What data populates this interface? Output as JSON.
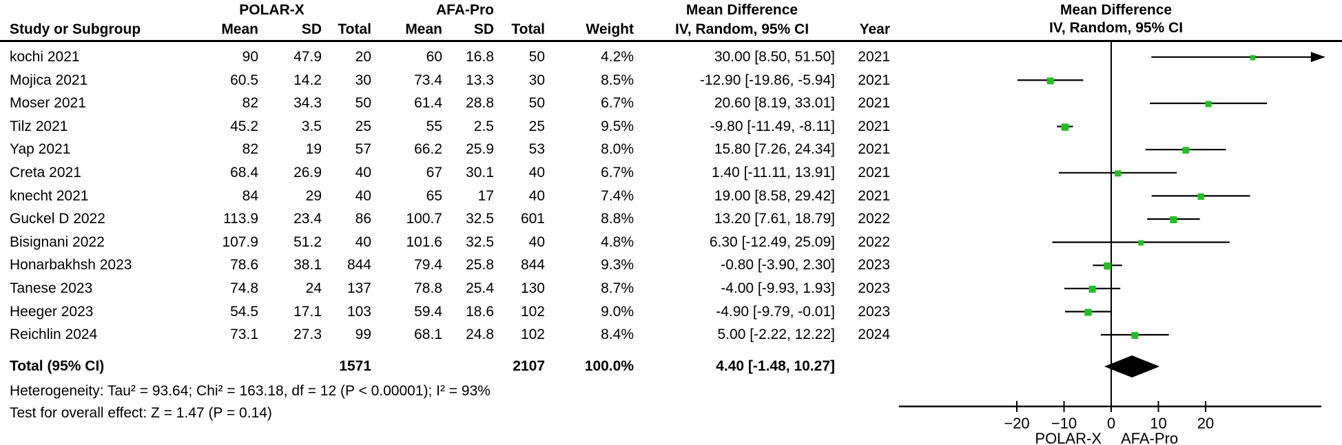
{
  "table": {
    "group1": "POLAR-X",
    "group2": "AFA-Pro",
    "effect_col": {
      "line1": "Mean Difference",
      "line2": "IV, Random, 95% CI"
    },
    "plot_col": {
      "line1": "Mean Difference",
      "line2": "IV, Random, 95% CI"
    },
    "columns": [
      "Study or Subgroup",
      "Mean",
      "SD",
      "Total",
      "Mean",
      "SD",
      "Total",
      "Weight",
      "IV, Random, 95% CI",
      "Year"
    ]
  },
  "chart_data": {
    "type": "forest",
    "effect_measure": "Mean Difference, IV, Random, 95% CI",
    "marker_color": "#20c020",
    "axis": {
      "ticks": [
        -20,
        -10,
        0,
        10,
        20
      ],
      "min": -45,
      "max": 44.5,
      "label_left": "POLAR-X",
      "label_right": "AFA-Pro"
    },
    "studies": [
      {
        "name": "kochi 2021",
        "mean1": "90",
        "sd1": "47.9",
        "n1": "20",
        "mean2": "60",
        "sd2": "16.8",
        "n2": "50",
        "weight": "4.2%",
        "md": 30.0,
        "lo": 8.5,
        "hi": 51.5,
        "ci_label": "30.00 [8.50, 51.50]",
        "year": "2021"
      },
      {
        "name": "Mojica 2021",
        "mean1": "60.5",
        "sd1": "14.2",
        "n1": "30",
        "mean2": "73.4",
        "sd2": "13.3",
        "n2": "30",
        "weight": "8.5%",
        "md": -12.9,
        "lo": -19.86,
        "hi": -5.94,
        "ci_label": "-12.90 [-19.86, -5.94]",
        "year": "2021"
      },
      {
        "name": "Moser 2021",
        "mean1": "82",
        "sd1": "34.3",
        "n1": "50",
        "mean2": "61.4",
        "sd2": "28.8",
        "n2": "50",
        "weight": "6.7%",
        "md": 20.6,
        "lo": 8.19,
        "hi": 33.01,
        "ci_label": "20.60 [8.19, 33.01]",
        "year": "2021"
      },
      {
        "name": "Tilz 2021",
        "mean1": "45.2",
        "sd1": "3.5",
        "n1": "25",
        "mean2": "55",
        "sd2": "2.5",
        "n2": "25",
        "weight": "9.5%",
        "md": -9.8,
        "lo": -11.49,
        "hi": -8.11,
        "ci_label": "-9.80 [-11.49, -8.11]",
        "year": "2021"
      },
      {
        "name": "Yap 2021",
        "mean1": "82",
        "sd1": "19",
        "n1": "57",
        "mean2": "66.2",
        "sd2": "25.9",
        "n2": "53",
        "weight": "8.0%",
        "md": 15.8,
        "lo": 7.26,
        "hi": 24.34,
        "ci_label": "15.80 [7.26, 24.34]",
        "year": "2021"
      },
      {
        "name": "Creta 2021",
        "mean1": "68.4",
        "sd1": "26.9",
        "n1": "40",
        "mean2": "67",
        "sd2": "30.1",
        "n2": "40",
        "weight": "6.7%",
        "md": 1.4,
        "lo": -11.11,
        "hi": 13.91,
        "ci_label": "1.40 [-11.11, 13.91]",
        "year": "2021"
      },
      {
        "name": "knecht 2021",
        "mean1": "84",
        "sd1": "29",
        "n1": "40",
        "mean2": "65",
        "sd2": "17",
        "n2": "40",
        "weight": "7.4%",
        "md": 19.0,
        "lo": 8.58,
        "hi": 29.42,
        "ci_label": "19.00 [8.58, 29.42]",
        "year": "2021"
      },
      {
        "name": "Guckel D 2022",
        "mean1": "113.9",
        "sd1": "23.4",
        "n1": "86",
        "mean2": "100.7",
        "sd2": "32.5",
        "n2": "601",
        "weight": "8.8%",
        "md": 13.2,
        "lo": 7.61,
        "hi": 18.79,
        "ci_label": "13.20 [7.61, 18.79]",
        "year": "2022"
      },
      {
        "name": "Bisignani 2022",
        "mean1": "107.9",
        "sd1": "51.2",
        "n1": "40",
        "mean2": "101.6",
        "sd2": "32.5",
        "n2": "40",
        "weight": "4.8%",
        "md": 6.3,
        "lo": -12.49,
        "hi": 25.09,
        "ci_label": "6.30 [-12.49, 25.09]",
        "year": "2022"
      },
      {
        "name": "Honarbakhsh 2023",
        "mean1": "78.6",
        "sd1": "38.1",
        "n1": "844",
        "mean2": "79.4",
        "sd2": "25.8",
        "n2": "844",
        "weight": "9.3%",
        "md": -0.8,
        "lo": -3.9,
        "hi": 2.3,
        "ci_label": "-0.80 [-3.90, 2.30]",
        "year": "2023"
      },
      {
        "name": "Tanese 2023",
        "mean1": "74.8",
        "sd1": "24",
        "n1": "137",
        "mean2": "78.8",
        "sd2": "25.4",
        "n2": "130",
        "weight": "8.7%",
        "md": -4.0,
        "lo": -9.93,
        "hi": 1.93,
        "ci_label": "-4.00 [-9.93, 1.93]",
        "year": "2023"
      },
      {
        "name": "Heeger 2023",
        "mean1": "54.5",
        "sd1": "17.1",
        "n1": "103",
        "mean2": "59.4",
        "sd2": "18.6",
        "n2": "102",
        "weight": "9.0%",
        "md": -4.9,
        "lo": -9.79,
        "hi": -0.01,
        "ci_label": "-4.90 [-9.79, -0.01]",
        "year": "2023"
      },
      {
        "name": "Reichlin 2024",
        "mean1": "73.1",
        "sd1": "27.3",
        "n1": "99",
        "mean2": "68.1",
        "sd2": "24.8",
        "n2": "102",
        "weight": "8.4%",
        "md": 5.0,
        "lo": -2.22,
        "hi": 12.22,
        "ci_label": "5.00 [-2.22, 12.22]",
        "year": "2024"
      }
    ],
    "total": {
      "label": "Total (95% CI)",
      "n1": "1571",
      "n2": "2107",
      "weight": "100.0%",
      "md": 4.4,
      "lo": -1.48,
      "hi": 10.27,
      "ci_label": "4.40 [-1.48, 10.27]"
    },
    "heterogeneity": "Heterogeneity: Tau² = 93.64; Chi² = 163.18, df = 12 (P < 0.00001); I² = 93%",
    "overall_effect": "Test for overall effect: Z = 1.47 (P = 0.14)"
  }
}
